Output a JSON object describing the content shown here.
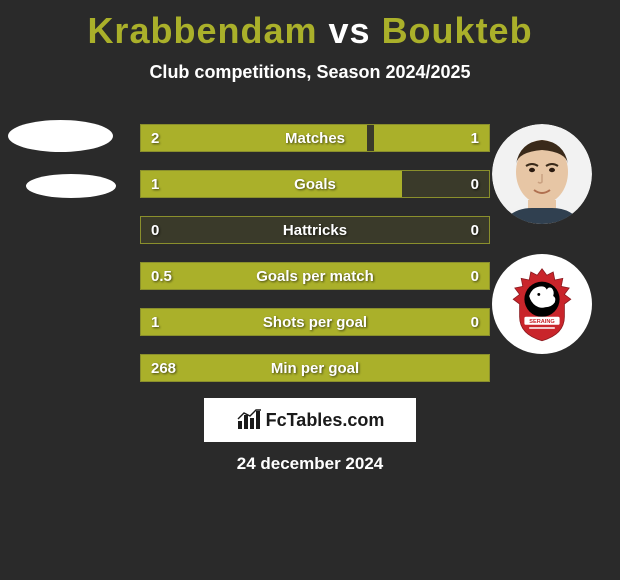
{
  "title": {
    "player1": "Krabbendam",
    "vs": "vs",
    "player2": "Boukteb"
  },
  "subtitle": "Club competitions, Season 2024/2025",
  "colors": {
    "accent": "#aab02a",
    "bar_border": "#8a8f2c",
    "bar_bg": "#3a3a2a",
    "page_bg": "#2a2a2a",
    "text": "#ffffff",
    "brand_bg": "#ffffff",
    "brand_text": "#1a1a1a"
  },
  "stats": [
    {
      "label": "Matches",
      "left_val": "2",
      "right_val": "1",
      "left_pct": 65,
      "right_pct": 33
    },
    {
      "label": "Goals",
      "left_val": "1",
      "right_val": "0",
      "left_pct": 75,
      "right_pct": 0
    },
    {
      "label": "Hattricks",
      "left_val": "0",
      "right_val": "0",
      "left_pct": 0,
      "right_pct": 0
    },
    {
      "label": "Goals per match",
      "left_val": "0.5",
      "right_val": "0",
      "left_pct": 100,
      "right_pct": 0
    },
    {
      "label": "Shots per goal",
      "left_val": "1",
      "right_val": "0",
      "left_pct": 100,
      "right_pct": 0
    },
    {
      "label": "Min per goal",
      "left_val": "268",
      "right_val": "",
      "left_pct": 100,
      "right_pct": 0
    }
  ],
  "brand": "FcTables.com",
  "date": "24 december 2024",
  "club_badge": {
    "outer": "#c9252b",
    "inner_bg": "#000000",
    "lion": "#ffffff",
    "banner_text": "SERAING"
  },
  "player_face": {
    "skin": "#e7c6a5",
    "hair": "#3a2a1a",
    "bg": "#f2f2f2"
  }
}
